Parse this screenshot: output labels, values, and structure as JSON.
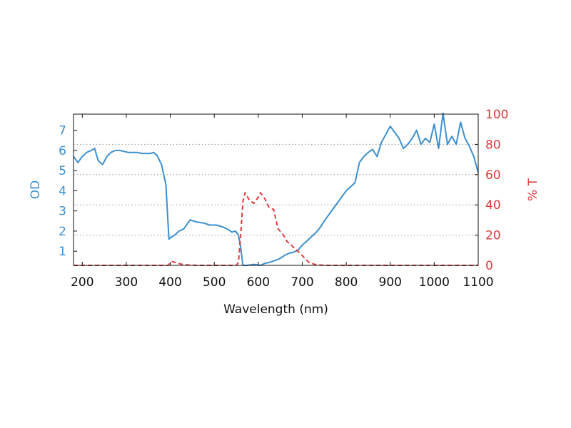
{
  "chart_data": {
    "type": "line",
    "xlabel": "Wavelength (nm)",
    "ylabel_left": "OD",
    "ylabel_right": "% T",
    "xlim": [
      180,
      1100
    ],
    "ylim_left": [
      0.3,
      7.8
    ],
    "ylim_right": [
      0,
      100
    ],
    "x_ticks": [
      200,
      300,
      400,
      500,
      600,
      700,
      800,
      900,
      1000,
      1100
    ],
    "y_ticks_left": [
      1,
      2,
      3,
      4,
      5,
      6,
      7
    ],
    "y_ticks_right": [
      0,
      20,
      40,
      60,
      80,
      100
    ],
    "grid": "horizontal-dotted",
    "colors": {
      "od": "#3b8fd0",
      "transmission": "#e03a3a"
    },
    "series": [
      {
        "axis": "left",
        "style": "solid",
        "x": [
          180,
          190,
          200,
          210,
          220,
          228,
          236,
          246,
          256,
          265,
          275,
          285,
          295,
          305,
          315,
          325,
          335,
          345,
          355,
          362,
          370,
          380,
          390,
          397,
          402,
          410,
          420,
          430,
          445,
          460,
          475,
          490,
          505,
          520,
          530,
          540,
          548,
          555,
          560,
          565,
          575,
          590,
          605,
          615,
          625,
          640,
          650,
          660,
          670,
          680,
          690,
          700,
          710,
          720,
          730,
          740,
          750,
          760,
          770,
          780,
          790,
          800,
          810,
          820,
          830,
          840,
          850,
          860,
          870,
          880,
          890,
          900,
          910,
          920,
          930,
          940,
          950,
          960,
          970,
          980,
          990,
          1000,
          1010,
          1020,
          1030,
          1040,
          1050,
          1060,
          1070,
          1080,
          1090,
          1100
        ],
        "values": [
          5.7,
          5.4,
          5.7,
          5.9,
          6.0,
          6.1,
          5.5,
          5.3,
          5.7,
          5.9,
          6.0,
          6.0,
          5.95,
          5.9,
          5.9,
          5.9,
          5.85,
          5.85,
          5.85,
          5.9,
          5.75,
          5.3,
          4.3,
          1.6,
          1.7,
          1.8,
          2.0,
          2.1,
          2.55,
          2.45,
          2.4,
          2.3,
          2.3,
          2.2,
          2.1,
          1.95,
          2.0,
          1.8,
          1.2,
          0.3,
          0.3,
          0.35,
          0.3,
          0.4,
          0.45,
          0.55,
          0.65,
          0.8,
          0.9,
          0.95,
          1.05,
          1.3,
          1.5,
          1.7,
          1.9,
          2.15,
          2.5,
          2.8,
          3.1,
          3.4,
          3.7,
          4.0,
          4.2,
          4.4,
          5.4,
          5.7,
          5.9,
          6.05,
          5.7,
          6.4,
          6.8,
          7.2,
          6.9,
          6.6,
          6.1,
          6.3,
          6.6,
          7.0,
          6.3,
          6.6,
          6.4,
          7.3,
          6.1,
          7.85,
          6.3,
          6.7,
          6.3,
          7.4,
          6.6,
          6.2,
          5.7,
          4.9
        ]
      },
      {
        "axis": "right",
        "style": "dashed",
        "x": [
          180,
          395,
          400,
          405,
          415,
          425,
          440,
          460,
          480,
          500,
          520,
          540,
          550,
          555,
          560,
          565,
          570,
          580,
          590,
          600,
          605,
          615,
          625,
          635,
          645,
          655,
          665,
          680,
          695,
          705,
          715,
          730,
          750,
          780,
          820,
          900,
          1000,
          1100
        ],
        "values": [
          0,
          0,
          2,
          2.5,
          1.5,
          0.8,
          0.3,
          0,
          0,
          0,
          0,
          0,
          0,
          2,
          20,
          42,
          48,
          43,
          41,
          45,
          48,
          44,
          38,
          37,
          24,
          21,
          16,
          12,
          8,
          5,
          2,
          0.5,
          0,
          0,
          0,
          0,
          0,
          0
        ]
      }
    ]
  }
}
